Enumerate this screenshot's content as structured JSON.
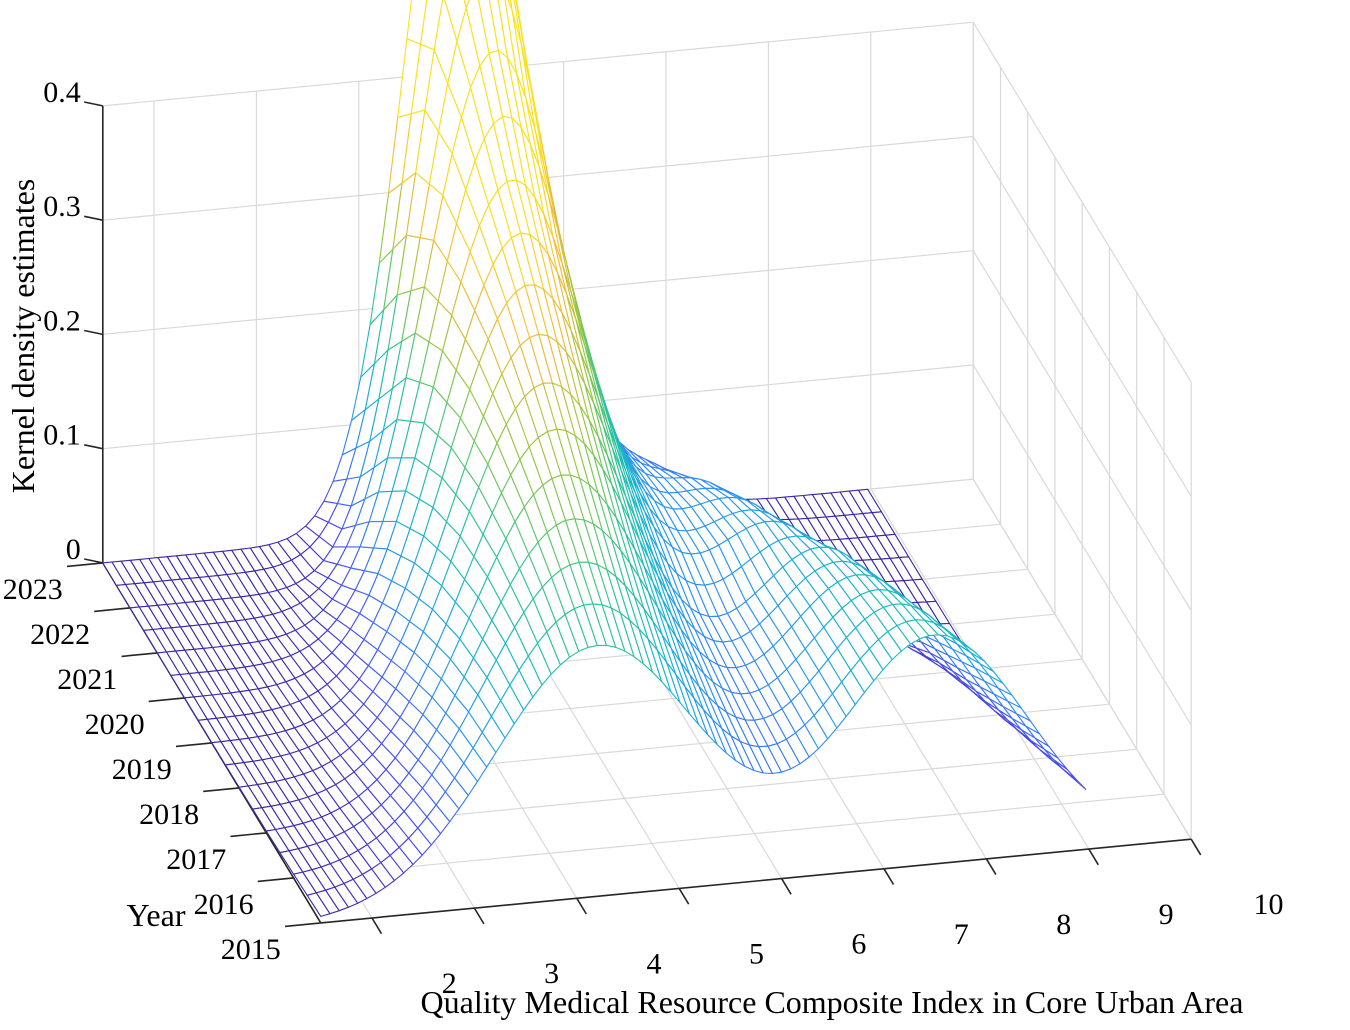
{
  "chart_data": {
    "type": "surface",
    "render_style": "3d-wireframe-mesh",
    "title": "",
    "xlabel": "Quality Medical Resource Composite Index in Core Urban Area",
    "ylabel": "Year",
    "zlabel": "Kernel density estimates",
    "xlim": [
      1.5,
      10
    ],
    "ylim": [
      2015,
      2023
    ],
    "zlim": [
      0,
      0.4
    ],
    "x_ticks": [
      2,
      3,
      4,
      5,
      6,
      7,
      8,
      9,
      10
    ],
    "y_ticks": [
      2015,
      2016,
      2017,
      2018,
      2019,
      2020,
      2021,
      2022,
      2023
    ],
    "z_ticks": [
      0,
      0.1,
      0.2,
      0.3,
      0.4
    ],
    "x_tick_labels": [
      "2",
      "3",
      "4",
      "5",
      "6",
      "7",
      "8",
      "9",
      "10"
    ],
    "y_tick_labels": [
      "2015",
      "2016",
      "2017",
      "2018",
      "2019",
      "2020",
      "2021",
      "2022",
      "2023"
    ],
    "z_tick_labels": [
      "0",
      "0.1",
      "0.2",
      "0.3",
      "0.4"
    ],
    "grid": true,
    "colormap": "parula",
    "colors": {
      "grid": "#d9d9d9",
      "axis": "#262626",
      "colormap_stops": [
        "#3e26a8",
        "#4a51f5",
        "#2f8ff5",
        "#16b5cf",
        "#2fc49a",
        "#8fc940",
        "#f4ba3c",
        "#f9e11e"
      ]
    },
    "series": [
      {
        "year": 2015,
        "components": [
          {
            "mean": 4.2,
            "weight": 0.55,
            "sd": 1.0
          },
          {
            "mean": 7.5,
            "weight": 0.45,
            "sd": 0.9
          }
        ]
      },
      {
        "year": 2016,
        "components": [
          {
            "mean": 4.3,
            "weight": 0.6,
            "sd": 0.95
          },
          {
            "mean": 7.4,
            "weight": 0.4,
            "sd": 0.85
          }
        ]
      },
      {
        "year": 2017,
        "components": [
          {
            "mean": 4.4,
            "weight": 0.65,
            "sd": 0.9
          },
          {
            "mean": 7.3,
            "weight": 0.35,
            "sd": 0.8
          }
        ]
      },
      {
        "year": 2018,
        "components": [
          {
            "mean": 4.5,
            "weight": 0.7,
            "sd": 0.85
          },
          {
            "mean": 7.2,
            "weight": 0.3,
            "sd": 0.75
          }
        ]
      },
      {
        "year": 2019,
        "components": [
          {
            "mean": 4.6,
            "weight": 0.75,
            "sd": 0.8
          },
          {
            "mean": 7.0,
            "weight": 0.25,
            "sd": 0.7
          }
        ]
      },
      {
        "year": 2020,
        "components": [
          {
            "mean": 4.7,
            "weight": 0.8,
            "sd": 0.75
          },
          {
            "mean": 6.9,
            "weight": 0.2,
            "sd": 0.65
          }
        ]
      },
      {
        "year": 2021,
        "components": [
          {
            "mean": 4.8,
            "weight": 0.85,
            "sd": 0.68
          },
          {
            "mean": 6.8,
            "weight": 0.15,
            "sd": 0.6
          }
        ]
      },
      {
        "year": 2022,
        "components": [
          {
            "mean": 4.9,
            "weight": 0.9,
            "sd": 0.6
          },
          {
            "mean": 6.6,
            "weight": 0.1,
            "sd": 0.55
          }
        ]
      },
      {
        "year": 2023,
        "components": [
          {
            "mean": 5.0,
            "weight": 0.95,
            "sd": 0.55
          },
          {
            "mean": 6.5,
            "weight": 0.05,
            "sd": 0.5
          }
        ]
      }
    ]
  }
}
